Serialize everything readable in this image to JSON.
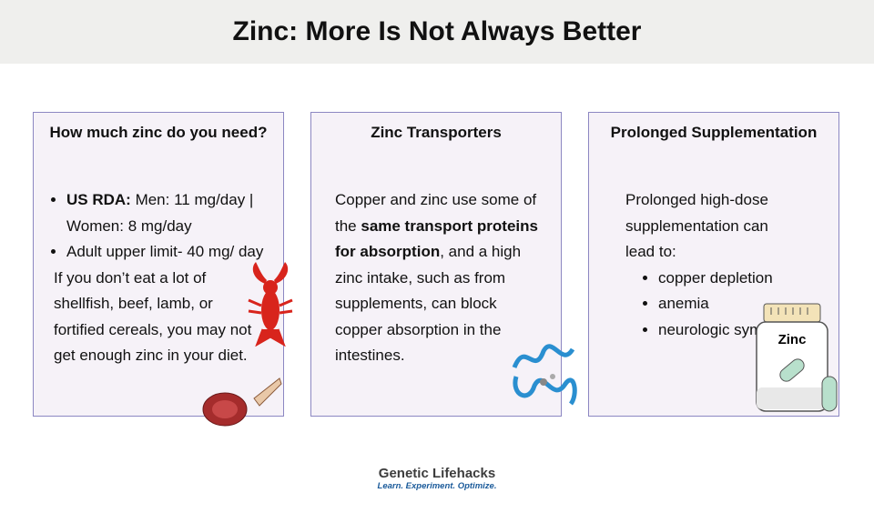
{
  "header": {
    "title": "Zinc: More Is Not Always Better"
  },
  "cards": [
    {
      "heading": "How much zinc do you need?",
      "bullets": [
        [
          {
            "text": "US RDA:",
            "bold": true
          },
          {
            "text": " Men: 11 mg/day | Women: 8 mg/day"
          }
        ],
        [
          {
            "text": "Adult upper limit- 40 mg/ day"
          }
        ]
      ],
      "paragraph": [
        {
          "text": "If you don’t eat a lot of shellfish, beef, lamb, or fortified cereals, you may not get enough zinc in your diet."
        }
      ]
    },
    {
      "heading": "Zinc Transporters",
      "paragraph": [
        {
          "text": "Copper and zinc use some of the "
        },
        {
          "text": "same transport proteins for absorption",
          "bold": true
        },
        {
          "text": ", and a high zinc intake, such as from supplements, can block copper absorption in the intestines."
        }
      ]
    },
    {
      "heading": "Prolonged Supplementation",
      "paragraph": [
        {
          "text": "Prolonged high-dose supplementation can lead to:"
        }
      ],
      "bullets": [
        [
          {
            "text": "copper depletion"
          }
        ],
        [
          {
            "text": "anemia"
          }
        ],
        [
          {
            "text": "neurologic symptoms."
          }
        ]
      ],
      "icon_label": "Zinc"
    }
  ],
  "footer": {
    "brand": "Genetic Lifehacks",
    "tagline": "Learn. Experiment. Optimize."
  }
}
